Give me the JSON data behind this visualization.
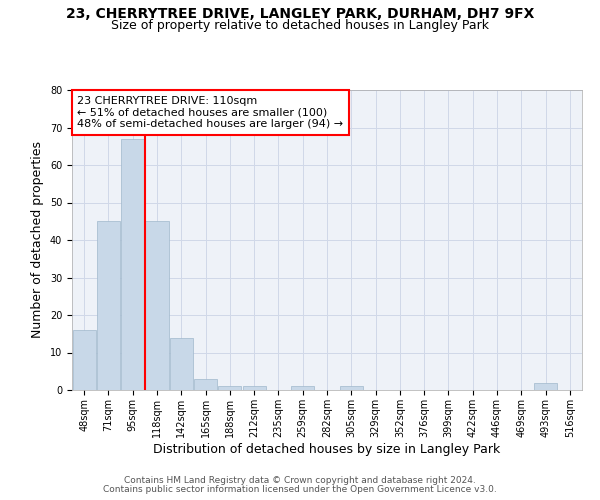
{
  "title_line1": "23, CHERRYTREE DRIVE, LANGLEY PARK, DURHAM, DH7 9FX",
  "title_line2": "Size of property relative to detached houses in Langley Park",
  "xlabel": "Distribution of detached houses by size in Langley Park",
  "ylabel": "Number of detached properties",
  "bar_color": "#c8d8e8",
  "bar_edge_color": "#a0b8cc",
  "bin_labels": [
    "48sqm",
    "71sqm",
    "95sqm",
    "118sqm",
    "142sqm",
    "165sqm",
    "188sqm",
    "212sqm",
    "235sqm",
    "259sqm",
    "282sqm",
    "305sqm",
    "329sqm",
    "352sqm",
    "376sqm",
    "399sqm",
    "422sqm",
    "446sqm",
    "469sqm",
    "493sqm",
    "516sqm"
  ],
  "bar_values": [
    16,
    45,
    67,
    45,
    14,
    3,
    1,
    1,
    0,
    1,
    0,
    1,
    0,
    0,
    0,
    0,
    0,
    0,
    0,
    2,
    0
  ],
  "ylim": [
    0,
    80
  ],
  "yticks": [
    0,
    10,
    20,
    30,
    40,
    50,
    60,
    70,
    80
  ],
  "property_line_x": 2.5,
  "annotation_text_line1": "23 CHERRYTREE DRIVE: 110sqm",
  "annotation_text_line2": "← 51% of detached houses are smaller (100)",
  "annotation_text_line3": "48% of semi-detached houses are larger (94) →",
  "annotation_box_color": "white",
  "annotation_box_edge": "red",
  "vline_color": "red",
  "grid_color": "#d0d8e8",
  "ax_facecolor": "#eef2f8",
  "background_color": "white",
  "footer_line1": "Contains HM Land Registry data © Crown copyright and database right 2024.",
  "footer_line2": "Contains public sector information licensed under the Open Government Licence v3.0.",
  "title_fontsize": 10,
  "subtitle_fontsize": 9,
  "xlabel_fontsize": 9,
  "ylabel_fontsize": 9,
  "tick_fontsize": 7,
  "footer_fontsize": 6.5,
  "annotation_fontsize": 8
}
